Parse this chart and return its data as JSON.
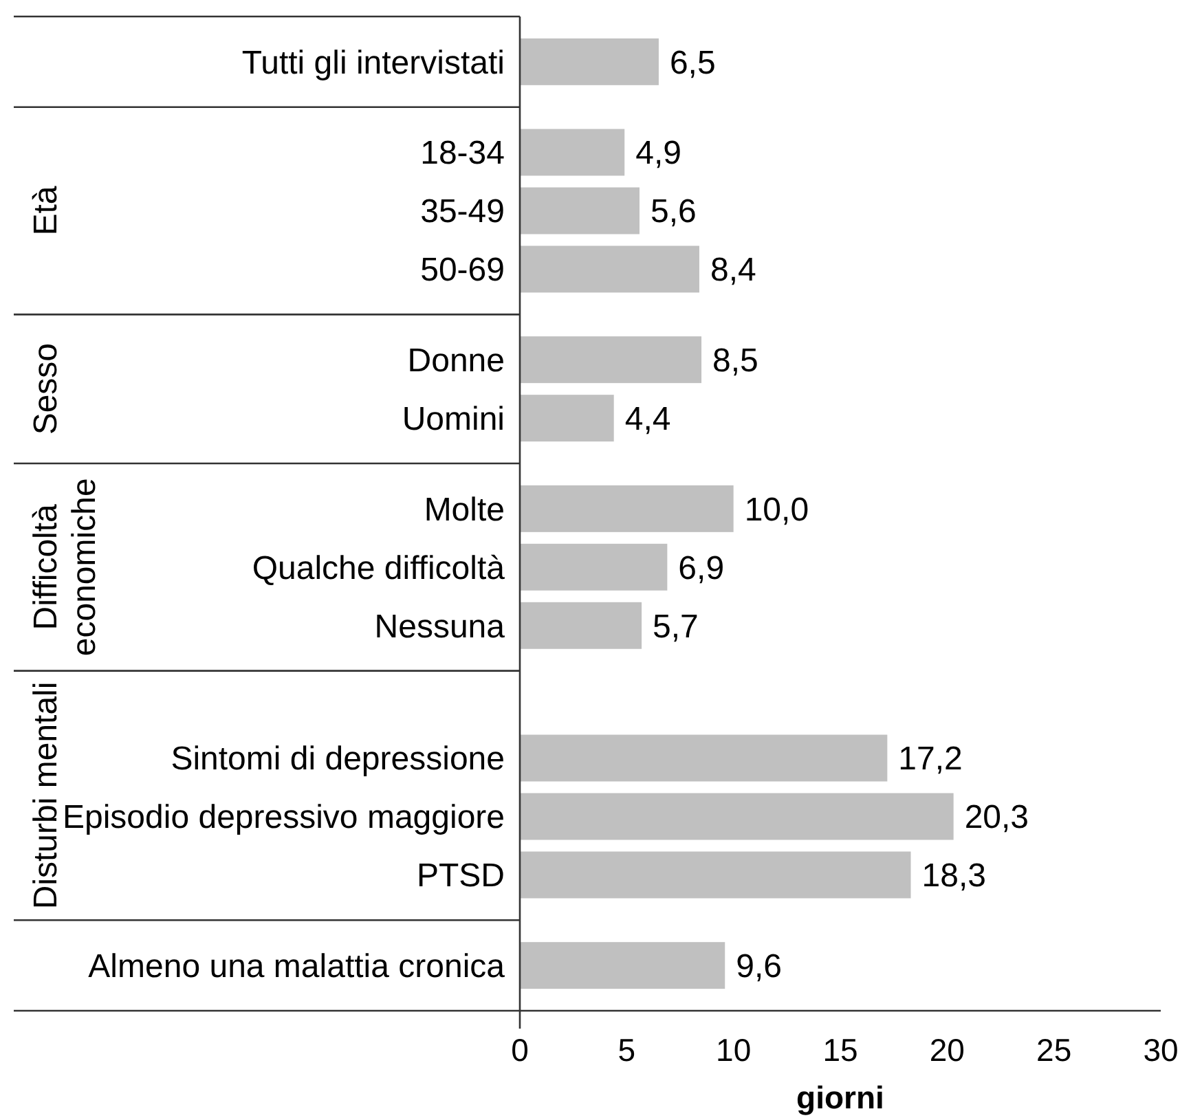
{
  "chart_data": {
    "type": "bar",
    "orientation": "horizontal",
    "categories": [
      "Tutti gli intervistati",
      null,
      "18-34",
      "35-49",
      "50-69",
      null,
      "Donne",
      "Uomini",
      null,
      "Molte",
      "Qualche difficoltà",
      "Nessuna",
      null,
      "Sintomi di depressione",
      "Episodio depressivo maggiore",
      "PTSD",
      null,
      "Almeno una malattia cronica"
    ],
    "values": [
      6.5,
      null,
      4.9,
      5.6,
      8.4,
      null,
      8.5,
      4.4,
      null,
      10.0,
      6.9,
      5.7,
      null,
      17.2,
      20.3,
      18.3,
      null,
      9.6
    ],
    "value_labels": [
      "6,5",
      null,
      "4,9",
      "5,6",
      "8,4",
      null,
      "8,5",
      "4,4",
      null,
      "10,0",
      "6,9",
      "5,7",
      null,
      "17,2",
      "20,3",
      "18,3",
      null,
      "9,6"
    ],
    "color": "#c0c0c0",
    "xlim": [
      0,
      30
    ],
    "xticks": [
      0,
      5,
      10,
      15,
      20,
      25,
      30
    ],
    "xlabel": "giorni",
    "annotations": [
      "Età",
      "Sesso",
      "Difficoltà economiche",
      "Disturbi mentali"
    ]
  }
}
